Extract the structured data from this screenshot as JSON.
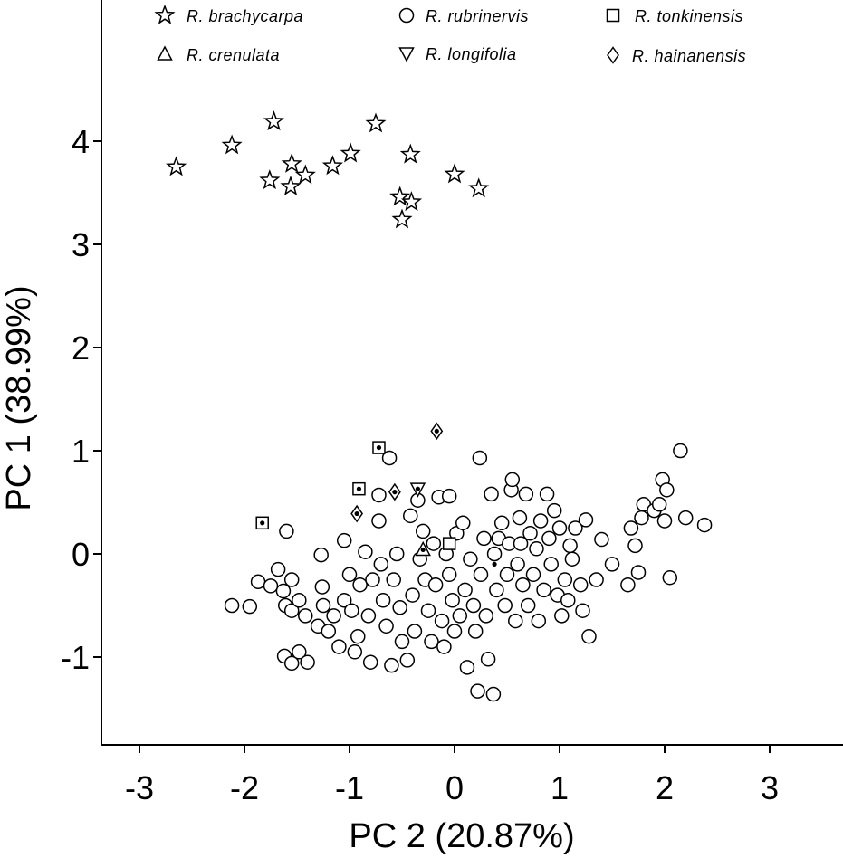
{
  "chart_data": {
    "type": "scatter",
    "xlabel": "PC 2 (20.87%)",
    "ylabel": "PC 1 (38.99%)",
    "xlim": [
      -3.35,
      3.7
    ],
    "ylim": [
      -1.85,
      5.4
    ],
    "xticks": [
      -3,
      -2,
      -1,
      0,
      1,
      2,
      3
    ],
    "yticks": [
      -1,
      0,
      1,
      2,
      3,
      4
    ],
    "legend_placement": "top",
    "series": [
      {
        "name": "R. brachycarpa",
        "marker": "star",
        "points": [
          [
            -2.65,
            3.75
          ],
          [
            -2.12,
            3.96
          ],
          [
            -1.72,
            4.19
          ],
          [
            -1.76,
            3.62
          ],
          [
            -1.55,
            3.78
          ],
          [
            -1.56,
            3.56
          ],
          [
            -1.42,
            3.67
          ],
          [
            -1.16,
            3.76
          ],
          [
            -0.99,
            3.88
          ],
          [
            -0.75,
            4.17
          ],
          [
            -0.42,
            3.87
          ],
          [
            -0.52,
            3.46
          ],
          [
            -0.41,
            3.41
          ],
          [
            -0.5,
            3.24
          ],
          [
            0.0,
            3.68
          ],
          [
            0.23,
            3.54
          ]
        ]
      },
      {
        "name": "R. rubrinervis",
        "marker": "circle",
        "points": [
          [
            -2.12,
            -0.5
          ],
          [
            -1.95,
            -0.51
          ],
          [
            -1.87,
            -0.27
          ],
          [
            -1.75,
            -0.31
          ],
          [
            -1.68,
            -0.15
          ],
          [
            -1.6,
            0.22
          ],
          [
            -1.63,
            -0.36
          ],
          [
            -1.55,
            -0.25
          ],
          [
            -1.61,
            -0.5
          ],
          [
            -1.55,
            -0.55
          ],
          [
            -1.48,
            -0.45
          ],
          [
            -1.42,
            -0.6
          ],
          [
            -1.62,
            -0.99
          ],
          [
            -1.55,
            -1.06
          ],
          [
            -1.48,
            -0.95
          ],
          [
            -1.4,
            -1.05
          ],
          [
            -1.3,
            -0.7
          ],
          [
            -1.25,
            -0.5
          ],
          [
            -1.26,
            -0.32
          ],
          [
            -1.27,
            -0.01
          ],
          [
            -1.2,
            -0.75
          ],
          [
            -1.15,
            -0.6
          ],
          [
            -1.1,
            -0.9
          ],
          [
            -1.05,
            -0.45
          ],
          [
            -1.05,
            0.13
          ],
          [
            -1.0,
            -0.2
          ],
          [
            -0.98,
            -0.55
          ],
          [
            -0.95,
            -0.95
          ],
          [
            -0.92,
            -0.8
          ],
          [
            -0.9,
            -0.3
          ],
          [
            -0.85,
            0.02
          ],
          [
            -0.82,
            -0.6
          ],
          [
            -0.78,
            -0.25
          ],
          [
            -0.8,
            -1.05
          ],
          [
            -0.72,
            0.57
          ],
          [
            -0.72,
            0.32
          ],
          [
            -0.7,
            -0.1
          ],
          [
            -0.68,
            -0.45
          ],
          [
            -0.65,
            -0.7
          ],
          [
            -0.62,
            0.93
          ],
          [
            -0.6,
            -1.08
          ],
          [
            -0.58,
            -0.25
          ],
          [
            -0.55,
            0.0
          ],
          [
            -0.52,
            -0.52
          ],
          [
            -0.5,
            -0.85
          ],
          [
            -0.45,
            -1.03
          ],
          [
            -0.42,
            0.37
          ],
          [
            -0.4,
            -0.4
          ],
          [
            -0.38,
            -0.75
          ],
          [
            -0.35,
            0.52
          ],
          [
            -0.33,
            -0.05
          ],
          [
            -0.3,
            0.22
          ],
          [
            -0.28,
            -0.25
          ],
          [
            -0.25,
            -0.55
          ],
          [
            -0.22,
            -0.85
          ],
          [
            -0.2,
            0.1
          ],
          [
            -0.18,
            -0.3
          ],
          [
            -0.15,
            0.55
          ],
          [
            -0.12,
            -0.65
          ],
          [
            -0.1,
            -0.9
          ],
          [
            -0.08,
            0.0
          ],
          [
            -0.05,
            0.56
          ],
          [
            -0.05,
            -0.2
          ],
          [
            -0.02,
            -0.45
          ],
          [
            0.0,
            -0.75
          ],
          [
            0.02,
            0.2
          ],
          [
            0.05,
            -0.6
          ],
          [
            0.08,
            0.3
          ],
          [
            0.1,
            -0.35
          ],
          [
            0.12,
            -1.1
          ],
          [
            0.15,
            -0.05
          ],
          [
            0.18,
            -0.5
          ],
          [
            0.2,
            -0.75
          ],
          [
            0.22,
            -1.33
          ],
          [
            0.24,
            0.93
          ],
          [
            0.25,
            -0.2
          ],
          [
            0.28,
            0.15
          ],
          [
            0.3,
            -0.6
          ],
          [
            0.32,
            -1.02
          ],
          [
            0.35,
            0.58
          ],
          [
            0.37,
            -1.36
          ],
          [
            0.38,
            0.0
          ],
          [
            0.4,
            -0.35
          ],
          [
            0.42,
            0.15
          ],
          [
            0.45,
            0.3
          ],
          [
            0.48,
            -0.5
          ],
          [
            0.5,
            -0.2
          ],
          [
            0.52,
            0.1
          ],
          [
            0.54,
            0.62
          ],
          [
            0.55,
            0.72
          ],
          [
            0.58,
            -0.65
          ],
          [
            0.6,
            -0.1
          ],
          [
            0.62,
            0.35
          ],
          [
            0.63,
            0.1
          ],
          [
            0.65,
            -0.3
          ],
          [
            0.68,
            0.58
          ],
          [
            0.7,
            -0.5
          ],
          [
            0.72,
            0.2
          ],
          [
            0.75,
            -0.2
          ],
          [
            0.78,
            0.05
          ],
          [
            0.8,
            -0.65
          ],
          [
            0.82,
            0.32
          ],
          [
            0.85,
            -0.35
          ],
          [
            0.88,
            0.58
          ],
          [
            0.9,
            0.15
          ],
          [
            0.92,
            -0.1
          ],
          [
            0.95,
            0.42
          ],
          [
            0.98,
            -0.4
          ],
          [
            1.0,
            0.25
          ],
          [
            1.02,
            -0.6
          ],
          [
            1.05,
            -0.25
          ],
          [
            1.08,
            -0.45
          ],
          [
            1.1,
            0.08
          ],
          [
            1.12,
            -0.05
          ],
          [
            1.15,
            0.25
          ],
          [
            1.2,
            -0.3
          ],
          [
            1.22,
            -0.55
          ],
          [
            1.25,
            0.33
          ],
          [
            1.28,
            -0.8
          ],
          [
            1.35,
            -0.25
          ],
          [
            1.4,
            0.14
          ],
          [
            1.5,
            -0.1
          ],
          [
            1.65,
            -0.3
          ],
          [
            1.68,
            0.25
          ],
          [
            1.72,
            0.08
          ],
          [
            1.75,
            -0.18
          ],
          [
            1.78,
            0.35
          ],
          [
            1.8,
            0.48
          ],
          [
            1.9,
            0.42
          ],
          [
            1.95,
            0.48
          ],
          [
            1.98,
            0.72
          ],
          [
            2.0,
            0.32
          ],
          [
            2.02,
            0.62
          ],
          [
            2.05,
            -0.23
          ],
          [
            2.15,
            1.0
          ],
          [
            2.2,
            0.35
          ],
          [
            2.38,
            0.28
          ]
        ]
      },
      {
        "name": "R. tonkinensis",
        "marker": "square",
        "points": [
          [
            -1.83,
            0.3
          ],
          [
            -0.91,
            0.63
          ],
          [
            -0.72,
            1.03
          ],
          [
            -0.05,
            0.1
          ]
        ]
      },
      {
        "name": "R. crenulata",
        "marker": "triangle-up",
        "points": [
          [
            -0.3,
            0.04
          ]
        ]
      },
      {
        "name": "R. longifolia",
        "marker": "triangle-down",
        "points": [
          [
            -0.35,
            0.63
          ]
        ]
      },
      {
        "name": "R. hainanensis",
        "marker": "diamond",
        "points": [
          [
            -0.93,
            0.39
          ],
          [
            -0.57,
            0.6
          ],
          [
            -0.17,
            1.19
          ]
        ]
      }
    ],
    "dotted_points": [
      [
        -1.83,
        0.3
      ],
      [
        -0.91,
        0.63
      ],
      [
        -0.72,
        1.03
      ],
      [
        -0.93,
        0.39
      ],
      [
        -0.57,
        0.6
      ],
      [
        -0.17,
        1.19
      ],
      [
        -0.35,
        0.63
      ],
      [
        -0.3,
        0.04
      ],
      [
        0.38,
        -0.1
      ]
    ]
  }
}
